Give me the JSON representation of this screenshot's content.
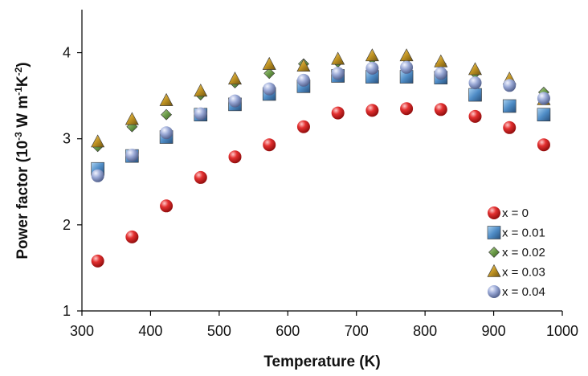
{
  "chart_data": {
    "type": "scatter",
    "title": "",
    "xlabel": "Temperature (K)",
    "ylabel": {
      "pre": "Power factor (10",
      "exp1": "-3",
      "mid1": " W m",
      "exp2": "-1",
      "mid2": "K",
      "exp3": "-2",
      "post": ")"
    },
    "xlim": [
      300,
      1000
    ],
    "ylim": [
      1,
      4.5
    ],
    "xticks": [
      "300",
      "400",
      "500",
      "600",
      "700",
      "800",
      "900",
      "1000"
    ],
    "xtick_values": [
      300,
      400,
      500,
      600,
      700,
      800,
      900,
      1000
    ],
    "yticks": [
      "1",
      "2",
      "3",
      "4"
    ],
    "ytick_values": [
      1,
      2,
      3,
      4
    ],
    "grid": false,
    "legend_position": "bottom-right",
    "x": [
      323,
      373,
      423,
      473,
      523,
      573,
      623,
      673,
      723,
      773,
      823,
      873,
      923,
      973
    ],
    "series": [
      {
        "name": "x = 0",
        "marker": "sphere",
        "color": "#d42020",
        "values": [
          1.58,
          1.86,
          2.22,
          2.55,
          2.79,
          2.93,
          3.14,
          3.3,
          3.33,
          3.35,
          3.34,
          3.26,
          3.13,
          2.93
        ]
      },
      {
        "name": "x = 0.01",
        "marker": "square",
        "color": "#4a86c0",
        "values": [
          2.65,
          2.8,
          3.02,
          3.28,
          3.4,
          3.52,
          3.61,
          3.73,
          3.72,
          3.72,
          3.71,
          3.51,
          3.38,
          3.28
        ]
      },
      {
        "name": "x = 0.02",
        "marker": "diamond",
        "color": "#6a9a48",
        "values": [
          2.91,
          3.14,
          3.28,
          3.51,
          3.65,
          3.76,
          3.87,
          3.89,
          3.93,
          3.93,
          3.87,
          3.76,
          3.66,
          3.54
        ]
      },
      {
        "name": "x = 0.03",
        "marker": "triangle",
        "color": "#b8860b",
        "values": [
          2.96,
          3.22,
          3.44,
          3.55,
          3.69,
          3.86,
          3.84,
          3.92,
          3.96,
          3.96,
          3.89,
          3.8,
          3.69,
          3.45
        ]
      },
      {
        "name": "x = 0.04",
        "marker": "sphere",
        "color": "#8c9cc8",
        "values": [
          2.57,
          2.81,
          3.07,
          3.29,
          3.44,
          3.58,
          3.68,
          3.76,
          3.82,
          3.83,
          3.76,
          3.65,
          3.62,
          3.47
        ]
      }
    ]
  }
}
